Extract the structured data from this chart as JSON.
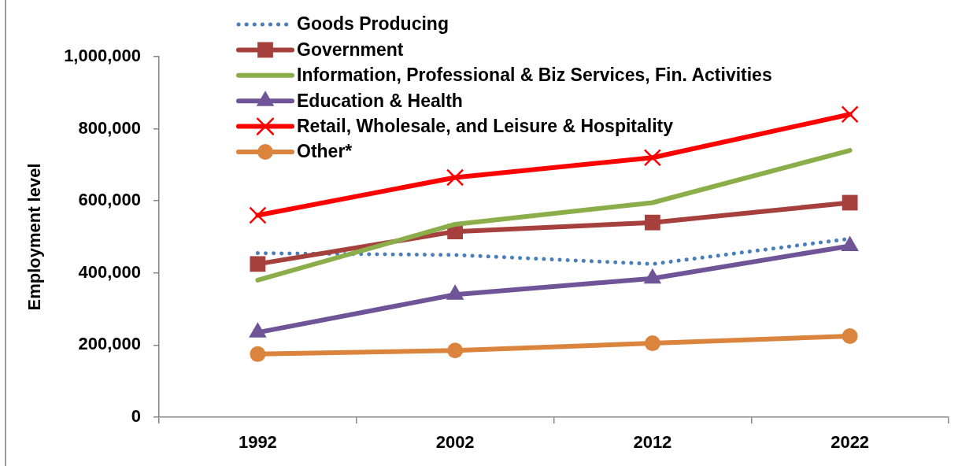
{
  "chart_data": {
    "type": "line",
    "ylabel": "Employment level",
    "categories": [
      "1992",
      "2002",
      "2012",
      "2022"
    ],
    "series": [
      {
        "name": "Goods Producing",
        "color": "#4a7ebb",
        "values": [
          455000,
          450000,
          425000,
          495000
        ],
        "marker": "none",
        "line_style": "dotted"
      },
      {
        "name": "Government",
        "color": "#a5403d",
        "values": [
          425000,
          515000,
          540000,
          595000
        ],
        "marker": "square",
        "line_style": "solid"
      },
      {
        "name": "Information, Professional & Biz Services, Fin. Activities",
        "color": "#8cae4a",
        "values": [
          380000,
          535000,
          595000,
          740000
        ],
        "marker": "none",
        "line_style": "solid"
      },
      {
        "name": "Education & Health",
        "color": "#6f5597",
        "values": [
          235000,
          340000,
          385000,
          475000
        ],
        "marker": "triangle",
        "line_style": "solid"
      },
      {
        "name": "Retail, Wholesale, and Leisure & Hospitality",
        "color": "#ff0000",
        "values": [
          560000,
          665000,
          720000,
          840000
        ],
        "marker": "cross",
        "line_style": "solid"
      },
      {
        "name": "Other*",
        "color": "#db843d",
        "values": [
          175000,
          185000,
          205000,
          225000
        ],
        "marker": "circle",
        "line_style": "solid"
      }
    ],
    "ylim": [
      0,
      1000000
    ],
    "yticks": [
      0,
      {
        "value": 200000,
        "label": "200,000"
      },
      {
        "value": 400000,
        "label": "400,000"
      },
      {
        "value": 600000,
        "label": "600,000"
      },
      {
        "value": 800000,
        "label": "800,000"
      },
      {
        "value": 1000000,
        "label": "1,000,000"
      }
    ],
    "grid": false,
    "legend": "top"
  }
}
